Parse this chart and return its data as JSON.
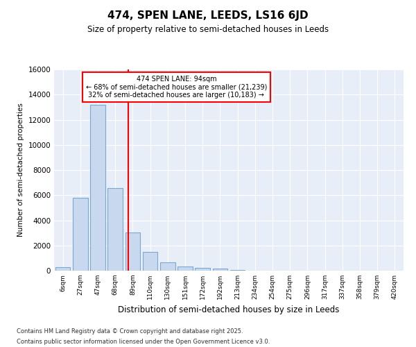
{
  "title": "474, SPEN LANE, LEEDS, LS16 6JD",
  "subtitle": "Size of property relative to semi-detached houses in Leeds",
  "xlabel": "Distribution of semi-detached houses by size in Leeds",
  "ylabel": "Number of semi-detached properties",
  "bin_labels": [
    "6sqm",
    "27sqm",
    "47sqm",
    "68sqm",
    "89sqm",
    "110sqm",
    "130sqm",
    "151sqm",
    "172sqm",
    "192sqm",
    "213sqm",
    "234sqm",
    "254sqm",
    "275sqm",
    "296sqm",
    "317sqm",
    "337sqm",
    "358sqm",
    "379sqm",
    "420sqm"
  ],
  "bar_values": [
    300,
    5800,
    13200,
    6550,
    3050,
    1500,
    650,
    350,
    200,
    150,
    80,
    0,
    0,
    0,
    0,
    0,
    0,
    0,
    0,
    0
  ],
  "bar_color": "#c8d8ee",
  "bar_edge_color": "#7aa8d0",
  "vline_color": "red",
  "vline_pos": 3.73,
  "annotation_title": "474 SPEN LANE: 94sqm",
  "annotation_line1": "← 68% of semi-detached houses are smaller (21,239)",
  "annotation_line2": "32% of semi-detached houses are larger (10,183) →",
  "ylim": [
    0,
    16000
  ],
  "yticks": [
    0,
    2000,
    4000,
    6000,
    8000,
    10000,
    12000,
    14000,
    16000
  ],
  "fig_bg_color": "#ffffff",
  "plot_bg_color": "#e8eef8",
  "grid_color": "#ffffff",
  "footer_line1": "Contains HM Land Registry data © Crown copyright and database right 2025.",
  "footer_line2": "Contains public sector information licensed under the Open Government Licence v3.0."
}
